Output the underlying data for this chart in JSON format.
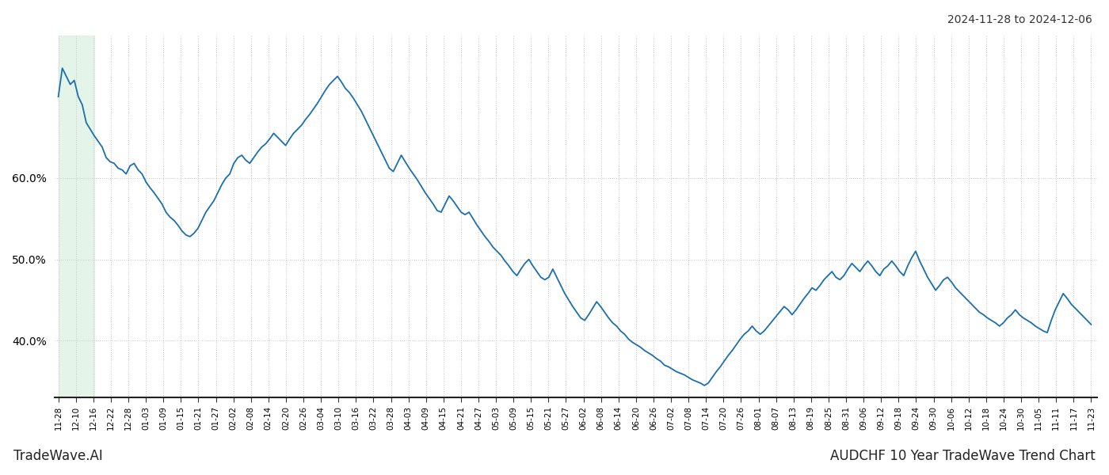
{
  "title_top_right": "2024-11-28 to 2024-12-06",
  "title_bottom_left": "TradeWave.AI",
  "title_bottom_right": "AUDCHF 10 Year TradeWave Trend Chart",
  "line_color": "#1a6faf",
  "line_width": 1.3,
  "background_color": "#ffffff",
  "grid_color": "#c8c8c8",
  "highlight_color": "#d4edda",
  "highlight_alpha": 0.6,
  "ylim": [
    0.33,
    0.775
  ],
  "yticks": [
    0.4,
    0.5,
    0.6
  ],
  "x_labels": [
    "11-28",
    "12-10",
    "12-16",
    "12-22",
    "12-28",
    "01-03",
    "01-09",
    "01-15",
    "01-21",
    "01-27",
    "02-02",
    "02-08",
    "02-14",
    "02-20",
    "02-26",
    "03-04",
    "03-10",
    "03-16",
    "03-22",
    "03-28",
    "04-03",
    "04-09",
    "04-15",
    "04-21",
    "04-27",
    "05-03",
    "05-09",
    "05-15",
    "05-21",
    "05-27",
    "06-02",
    "06-08",
    "06-14",
    "06-20",
    "06-26",
    "07-02",
    "07-08",
    "07-14",
    "07-20",
    "07-26",
    "08-01",
    "08-07",
    "08-13",
    "08-19",
    "08-25",
    "08-31",
    "09-06",
    "09-12",
    "09-18",
    "09-24",
    "09-30",
    "10-06",
    "10-12",
    "10-18",
    "10-24",
    "10-30",
    "11-05",
    "11-11",
    "11-17",
    "11-23"
  ],
  "y_values": [
    0.7,
    0.735,
    0.725,
    0.715,
    0.72,
    0.7,
    0.69,
    0.668,
    0.66,
    0.652,
    0.645,
    0.638,
    0.625,
    0.62,
    0.618,
    0.612,
    0.61,
    0.605,
    0.615,
    0.618,
    0.61,
    0.605,
    0.595,
    0.588,
    0.582,
    0.575,
    0.568,
    0.558,
    0.552,
    0.548,
    0.542,
    0.535,
    0.53,
    0.528,
    0.532,
    0.538,
    0.548,
    0.558,
    0.565,
    0.572,
    0.582,
    0.592,
    0.6,
    0.605,
    0.618,
    0.625,
    0.628,
    0.622,
    0.618,
    0.625,
    0.632,
    0.638,
    0.642,
    0.648,
    0.655,
    0.65,
    0.645,
    0.64,
    0.648,
    0.655,
    0.66,
    0.665,
    0.672,
    0.678,
    0.685,
    0.692,
    0.7,
    0.708,
    0.715,
    0.72,
    0.725,
    0.718,
    0.71,
    0.705,
    0.698,
    0.69,
    0.682,
    0.672,
    0.662,
    0.652,
    0.642,
    0.632,
    0.622,
    0.612,
    0.608,
    0.618,
    0.628,
    0.62,
    0.612,
    0.605,
    0.598,
    0.59,
    0.582,
    0.575,
    0.568,
    0.56,
    0.558,
    0.568,
    0.578,
    0.572,
    0.565,
    0.558,
    0.555,
    0.558,
    0.55,
    0.542,
    0.535,
    0.528,
    0.522,
    0.515,
    0.51,
    0.505,
    0.498,
    0.492,
    0.485,
    0.48,
    0.488,
    0.495,
    0.5,
    0.492,
    0.485,
    0.478,
    0.475,
    0.478,
    0.488,
    0.478,
    0.468,
    0.458,
    0.45,
    0.442,
    0.435,
    0.428,
    0.425,
    0.432,
    0.44,
    0.448,
    0.442,
    0.435,
    0.428,
    0.422,
    0.418,
    0.412,
    0.408,
    0.402,
    0.398,
    0.395,
    0.392,
    0.388,
    0.385,
    0.382,
    0.378,
    0.375,
    0.37,
    0.368,
    0.365,
    0.362,
    0.36,
    0.358,
    0.355,
    0.352,
    0.35,
    0.348,
    0.345,
    0.348,
    0.355,
    0.362,
    0.368,
    0.375,
    0.382,
    0.388,
    0.395,
    0.402,
    0.408,
    0.412,
    0.418,
    0.412,
    0.408,
    0.412,
    0.418,
    0.424,
    0.43,
    0.436,
    0.442,
    0.438,
    0.432,
    0.438,
    0.445,
    0.452,
    0.458,
    0.465,
    0.462,
    0.468,
    0.475,
    0.48,
    0.485,
    0.478,
    0.475,
    0.48,
    0.488,
    0.495,
    0.49,
    0.485,
    0.492,
    0.498,
    0.492,
    0.485,
    0.48,
    0.488,
    0.492,
    0.498,
    0.492,
    0.485,
    0.48,
    0.492,
    0.502,
    0.51,
    0.498,
    0.488,
    0.478,
    0.47,
    0.462,
    0.468,
    0.475,
    0.478,
    0.472,
    0.465,
    0.46,
    0.455,
    0.45,
    0.445,
    0.44,
    0.435,
    0.432,
    0.428,
    0.425,
    0.422,
    0.418,
    0.422,
    0.428,
    0.432,
    0.438,
    0.432,
    0.428,
    0.425,
    0.422,
    0.418,
    0.415,
    0.412,
    0.41,
    0.425,
    0.438,
    0.448,
    0.458,
    0.452,
    0.445,
    0.44,
    0.435,
    0.43,
    0.425,
    0.42
  ]
}
